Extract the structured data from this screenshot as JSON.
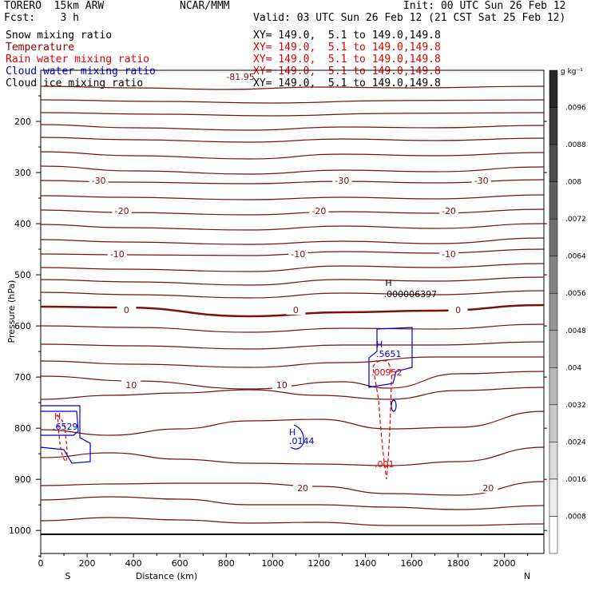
{
  "header": {
    "model": "TORERO  15km ARW",
    "org": "NCAR/MMM",
    "init": "Init: 00 UTC Sun 26 Feb 12",
    "fcst": "Fcst:    3 h",
    "valid": "Valid: 03 UTC Sun 26 Feb 12 (21 CST Sat 25 Feb 12)"
  },
  "fields": [
    {
      "name": "Snow mixing ratio",
      "xy": "XY= 149.0,  5.1 to 149.0,149.8",
      "color": "#000000"
    },
    {
      "name": "Temperature",
      "xy": "XY= 149.0,  5.1 to 149.0,149.8",
      "color": "#8b0000"
    },
    {
      "name": "Rain water mixing ratio",
      "xy": "XY= 149.0,  5.1 to 149.0,149.8",
      "color": "#dd0000"
    },
    {
      "name": "Cloud water mixing ratio",
      "xy": "XY= 149.0,  5.1 to 149.0,149.8",
      "color": "#0000cc"
    },
    {
      "name": "Cloud ice mixing ratio",
      "xy": "XY= 149.0,  5.1 to 149.0,149.8",
      "color": "#000000"
    }
  ],
  "chart_data": {
    "type": "cross-section",
    "xlabel": "Distance (km)",
    "ylabel": "Pressure (hPa)",
    "x_ticks": [
      0,
      200,
      400,
      600,
      800,
      1000,
      1200,
      1400,
      1600,
      1800,
      2000
    ],
    "y_ticks": [
      200,
      300,
      400,
      500,
      600,
      700,
      800,
      900,
      1000
    ],
    "xlim": [
      0,
      2170
    ],
    "ylim": [
      1045,
      100
    ],
    "x_end_labels": {
      "left": "S",
      "right": "N"
    },
    "colorbar": {
      "units": "g kg⁻¹",
      "ticks": [
        ".0096",
        ".0088",
        ".008",
        ".0072",
        ".0064",
        ".0056",
        ".0048",
        ".004",
        ".0032",
        ".0024",
        ".0016",
        ".0008"
      ]
    },
    "temperature_isotherms": [
      {
        "value": "-30",
        "labels": [
          [
            250,
            -30
          ],
          [
            1300,
            -30
          ],
          [
            1900,
            -30
          ]
        ]
      },
      {
        "value": "-20",
        "labels": [
          [
            350,
            -20
          ],
          [
            1200,
            -20
          ],
          [
            1760,
            -20
          ]
        ]
      },
      {
        "value": "-10",
        "labels": [
          [
            330,
            -10
          ],
          [
            1110,
            -10
          ],
          [
            1760,
            -10
          ]
        ]
      },
      {
        "value": "0",
        "labels": [
          [
            370,
            0
          ],
          [
            1100,
            0
          ],
          [
            1800,
            0
          ]
        ]
      },
      {
        "value": "10",
        "labels": [
          [
            390,
            10
          ],
          [
            1040,
            10
          ]
        ]
      },
      {
        "value": "20",
        "labels": [
          [
            1130,
            20
          ],
          [
            1930,
            20
          ]
        ]
      }
    ],
    "annotations": {
      "temp_min": "-81.95",
      "snow_max": {
        "H": "H",
        "value": ".000006397"
      },
      "cloud_water_max_1": {
        "H": "H",
        "value": ".5651"
      },
      "rain_max_1": {
        "value": ".00952"
      },
      "cloud_water_max_2": {
        "H": "H",
        "value": ".0144"
      },
      "left_H": {
        "H": "H",
        "value": ".6529"
      },
      "rain_min": {
        "value": ".001"
      }
    }
  }
}
